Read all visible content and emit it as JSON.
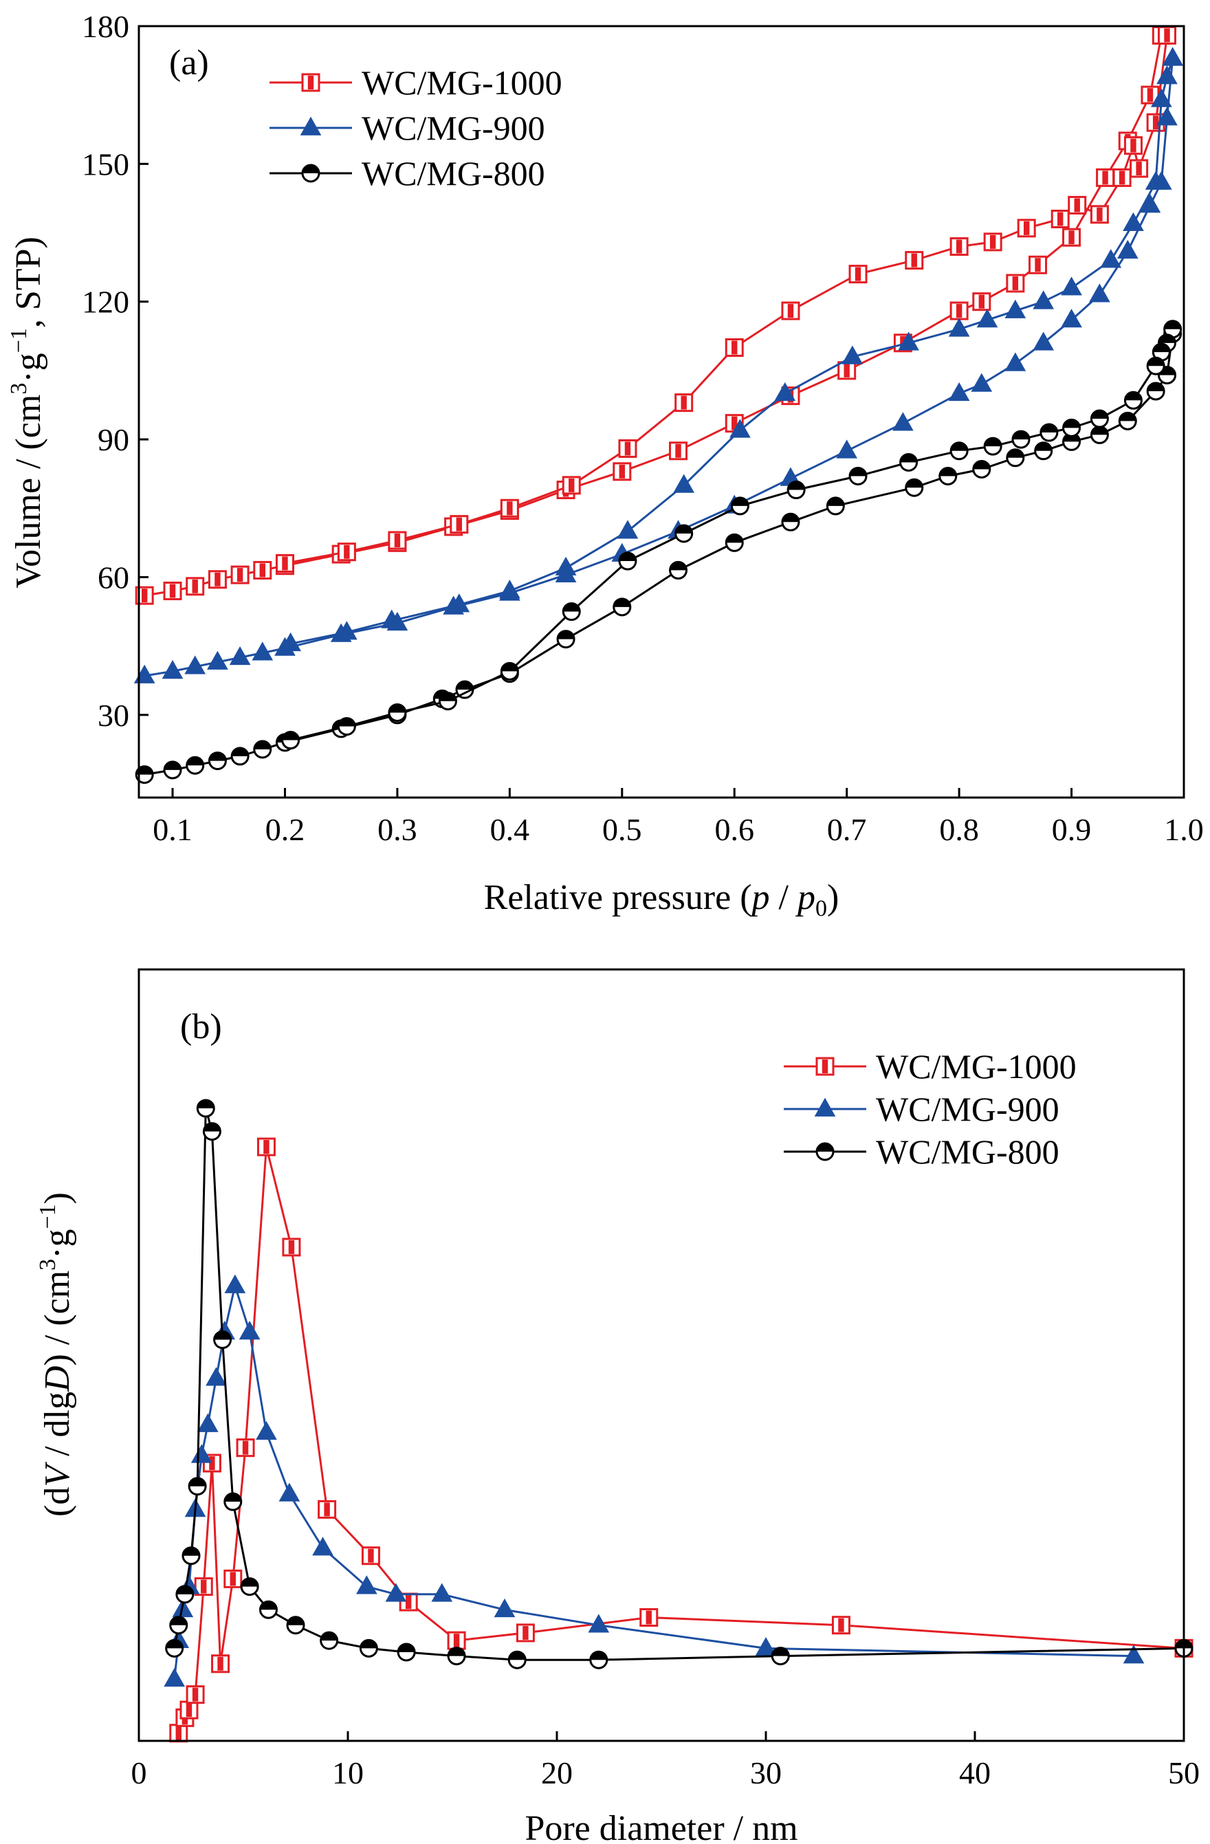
{
  "chart_data": [
    {
      "type": "line",
      "panel_label": "(a)",
      "xlabel": "Relative pressure (p / p0)",
      "xlabel_parts": {
        "main": "Relative pressure (",
        "p": "p",
        "sep": " / ",
        "p0": "p",
        "sub": "0",
        "close": ")"
      },
      "ylabel": "Volume / (cm³·g⁻¹, STP)",
      "ylabel_parts": {
        "a": "Volume / (cm",
        "sup1": "3",
        "b": "·g",
        "sup2": "−1",
        "c": ", STP)"
      },
      "xlim": [
        0.07,
        1.0
      ],
      "ylim": [
        12,
        180
      ],
      "xticks": [
        0.1,
        0.2,
        0.3,
        0.4,
        0.5,
        0.6,
        0.7,
        0.8,
        0.9,
        1.0
      ],
      "xtick_labels": [
        "0.1",
        "0.2",
        "0.3",
        "0.4",
        "0.5",
        "0.6",
        "0.7",
        "0.8",
        "0.9",
        "1.0"
      ],
      "yticks": [
        30,
        60,
        90,
        120,
        150,
        180
      ],
      "ytick_labels": [
        "30",
        "60",
        "90",
        "120",
        "150",
        "180"
      ],
      "legend_position": "top-left",
      "series": [
        {
          "name": "WC/MG-1000",
          "color": "#e31e24",
          "marker": "square",
          "adsorption": {
            "x": [
              0.075,
              0.1,
              0.12,
              0.14,
              0.16,
              0.18,
              0.2,
              0.25,
              0.3,
              0.35,
              0.4,
              0.45,
              0.5,
              0.55,
              0.6,
              0.65,
              0.7,
              0.75,
              0.8,
              0.82,
              0.85,
              0.87,
              0.9,
              0.93,
              0.95,
              0.97,
              0.98
            ],
            "y": [
              56,
              57,
              58,
              59.5,
              60.5,
              61.5,
              62.5,
              65,
              67.5,
              71,
              74.5,
              79,
              83,
              87.5,
              93.5,
              99.5,
              105,
              111,
              118,
              120,
              124,
              128,
              134,
              147,
              155,
              165,
              178
            ]
          },
          "desorption": {
            "x": [
              0.985,
              0.975,
              0.96,
              0.955,
              0.945,
              0.925,
              0.905,
              0.89,
              0.86,
              0.83,
              0.8,
              0.76,
              0.71,
              0.65,
              0.6,
              0.555,
              0.505,
              0.455,
              0.4,
              0.355,
              0.3,
              0.255,
              0.2
            ],
            "y": [
              178,
              159,
              149,
              154,
              147,
              139,
              141,
              138,
              136,
              133,
              132,
              129,
              126,
              118,
              110,
              98,
              88,
              80,
              75,
              71.5,
              68,
              65.5,
              63
            ]
          }
        },
        {
          "name": "WC/MG-900",
          "color": "#1d4fa1",
          "marker": "triangle",
          "adsorption": {
            "x": [
              0.075,
              0.1,
              0.12,
              0.14,
              0.16,
              0.18,
              0.2,
              0.25,
              0.3,
              0.35,
              0.4,
              0.45,
              0.5,
              0.55,
              0.6,
              0.65,
              0.7,
              0.75,
              0.8,
              0.82,
              0.85,
              0.875,
              0.9,
              0.925,
              0.95,
              0.97,
              0.98,
              0.985,
              0.99
            ],
            "y": [
              38.5,
              39.5,
              40.5,
              41.5,
              42.5,
              43.5,
              44.5,
              47.5,
              50,
              53.5,
              56.5,
              60.5,
              65,
              70,
              75.5,
              81.5,
              87.5,
              93.5,
              100,
              102,
              106.5,
              111,
              116,
              121.5,
              131,
              141,
              146,
              160,
              173
            ]
          },
          "desorption": {
            "x": [
              0.99,
              0.985,
              0.98,
              0.975,
              0.955,
              0.935,
              0.9,
              0.875,
              0.85,
              0.825,
              0.8,
              0.755,
              0.705,
              0.645,
              0.605,
              0.555,
              0.505,
              0.45,
              0.4,
              0.355,
              0.295,
              0.255,
              0.205
            ],
            "y": [
              173,
              169,
              164,
              146,
              137,
              129,
              123,
              120,
              118,
              116,
              114,
              111,
              108,
              100,
              92,
              80,
              70,
              62,
              57,
              54,
              50.5,
              48,
              45.5
            ]
          }
        },
        {
          "name": "WC/MG-800",
          "color": "#000000",
          "marker": "circle",
          "adsorption": {
            "x": [
              0.075,
              0.1,
              0.12,
              0.14,
              0.16,
              0.18,
              0.2,
              0.25,
              0.3,
              0.34,
              0.36,
              0.4,
              0.45,
              0.5,
              0.55,
              0.6,
              0.65,
              0.69,
              0.76,
              0.79,
              0.82,
              0.85,
              0.875,
              0.9,
              0.925,
              0.95,
              0.975,
              0.985,
              0.99
            ],
            "y": [
              17,
              18,
              19,
              20,
              21,
              22.5,
              24,
              27,
              30,
              33.5,
              35.5,
              39,
              46.5,
              53.5,
              61.5,
              67.5,
              72,
              75.5,
              79.5,
              82,
              83.5,
              86,
              87.5,
              89.5,
              91,
              94,
              100.5,
              104,
              113
            ]
          },
          "desorption": {
            "x": [
              0.99,
              0.985,
              0.98,
              0.975,
              0.955,
              0.925,
              0.9,
              0.88,
              0.855,
              0.83,
              0.8,
              0.755,
              0.71,
              0.655,
              0.605,
              0.555,
              0.505,
              0.455,
              0.4,
              0.345,
              0.3,
              0.255,
              0.205
            ],
            "y": [
              114,
              111,
              109,
              106,
              98.5,
              94.5,
              92.5,
              91.5,
              90,
              88.5,
              87.5,
              85,
              82,
              79,
              75.5,
              69.5,
              63.5,
              52.5,
              39.5,
              33,
              30.5,
              27.5,
              24.5
            ]
          }
        }
      ]
    },
    {
      "type": "line",
      "panel_label": "(b)",
      "xlabel": "Pore diameter / nm",
      "ylabel": "(dV / dlgD) / (cm³·g⁻¹)",
      "ylabel_parts": {
        "a": "(d",
        "V": "V",
        "b": " / dlg",
        "D": "D",
        "c": ") / (cm",
        "sup1": "3",
        "d": "·g",
        "sup2": "−1",
        "e": ")"
      },
      "xlim": [
        0,
        50
      ],
      "ylim": [
        0,
        1
      ],
      "y_tick_labels_shown": false,
      "xticks": [
        0,
        10,
        20,
        30,
        40,
        50
      ],
      "xtick_labels": [
        "0",
        "10",
        "20",
        "30",
        "40",
        "50"
      ],
      "legend_position": "top-right",
      "series": [
        {
          "name": "WC/MG-1000",
          "color": "#e31e24",
          "marker": "square",
          "x": [
            1.9,
            2.2,
            2.4,
            2.7,
            3.1,
            3.5,
            3.9,
            4.5,
            5.1,
            6.1,
            7.3,
            9.0,
            11.1,
            12.9,
            15.2,
            18.5,
            24.4,
            33.6,
            50
          ],
          "y": [
            0.01,
            0.03,
            0.04,
            0.06,
            0.2,
            0.36,
            0.1,
            0.21,
            0.38,
            0.77,
            0.64,
            0.3,
            0.24,
            0.18,
            0.13,
            0.14,
            0.16,
            0.15,
            0.12
          ]
        },
        {
          "name": "WC/MG-900",
          "color": "#1d4fa1",
          "marker": "triangle",
          "x": [
            1.7,
            1.9,
            2.1,
            2.4,
            2.7,
            3.0,
            3.3,
            3.7,
            4.1,
            4.6,
            5.3,
            6.1,
            7.2,
            8.8,
            10.9,
            12.3,
            14.5,
            17.5,
            22.0,
            30.0,
            47.6
          ],
          "y": [
            0.08,
            0.13,
            0.17,
            0.2,
            0.3,
            0.37,
            0.41,
            0.47,
            0.53,
            0.59,
            0.53,
            0.4,
            0.32,
            0.25,
            0.2,
            0.19,
            0.19,
            0.17,
            0.15,
            0.12,
            0.11
          ]
        },
        {
          "name": "WC/MG-800",
          "color": "#000000",
          "marker": "circle",
          "x": [
            1.7,
            1.9,
            2.2,
            2.5,
            2.8,
            3.2,
            3.5,
            4.0,
            4.5,
            5.3,
            6.2,
            7.5,
            9.1,
            11.0,
            12.8,
            15.2,
            18.1,
            22.0,
            30.7,
            50
          ],
          "y": [
            0.12,
            0.15,
            0.19,
            0.24,
            0.33,
            0.82,
            0.79,
            0.52,
            0.31,
            0.2,
            0.17,
            0.15,
            0.13,
            0.12,
            0.115,
            0.11,
            0.105,
            0.105,
            0.11,
            0.12
          ]
        }
      ]
    }
  ]
}
